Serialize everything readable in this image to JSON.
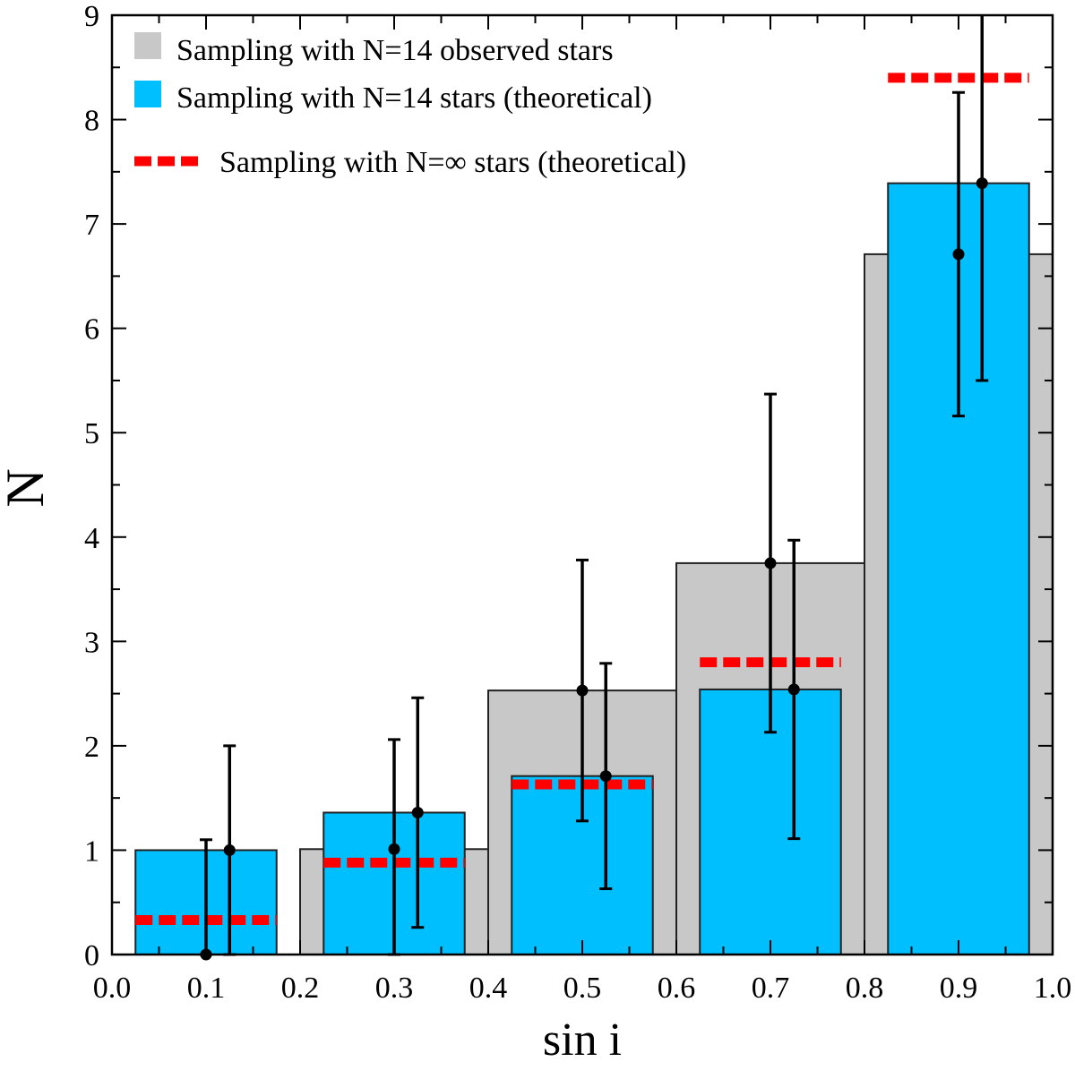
{
  "chart_data": {
    "type": "bar",
    "title": "",
    "xlabel": "sin i",
    "ylabel": "N",
    "xlim": [
      0.0,
      1.0
    ],
    "ylim": [
      0,
      9
    ],
    "grid": false,
    "legend_position": "top-left",
    "bin_edges": [
      0.0,
      0.2,
      0.4,
      0.6,
      0.8,
      1.0
    ],
    "x_ticks": [
      "0.0",
      "0.1",
      "0.2",
      "0.3",
      "0.4",
      "0.5",
      "0.6",
      "0.7",
      "0.8",
      "0.9",
      "1.0"
    ],
    "y_ticks": [
      "0",
      "1",
      "2",
      "3",
      "4",
      "5",
      "6",
      "7",
      "8",
      "9"
    ],
    "series": [
      {
        "name": "Sampling with N=14 observed stars",
        "kind": "bar",
        "color": "#c8c8c8",
        "x": [
          0.1,
          0.3,
          0.5,
          0.7,
          0.9
        ],
        "values": [
          0.0,
          1.01,
          2.53,
          3.75,
          6.71
        ],
        "err_low": [
          0.0,
          1.01,
          1.25,
          1.62,
          1.55
        ],
        "err_high": [
          1.1,
          1.05,
          1.25,
          1.62,
          1.55
        ]
      },
      {
        "name": "Sampling with N=14 stars (theoretical)",
        "kind": "bar",
        "color": "#00bfff",
        "x": [
          0.1,
          0.3,
          0.5,
          0.7,
          0.9
        ],
        "values": [
          1.0,
          1.36,
          1.71,
          2.54,
          7.39
        ],
        "err_low": [
          1.0,
          1.1,
          1.08,
          1.43,
          1.89
        ],
        "err_high": [
          1.0,
          1.1,
          1.08,
          1.43,
          1.89
        ]
      },
      {
        "name": "Sampling with N=∞  stars (theoretical)",
        "kind": "dashed-level",
        "color": "#ff0000",
        "x": [
          0.1,
          0.3,
          0.5,
          0.7,
          0.9
        ],
        "values": [
          0.33,
          0.88,
          1.63,
          2.8,
          8.4
        ]
      }
    ]
  }
}
